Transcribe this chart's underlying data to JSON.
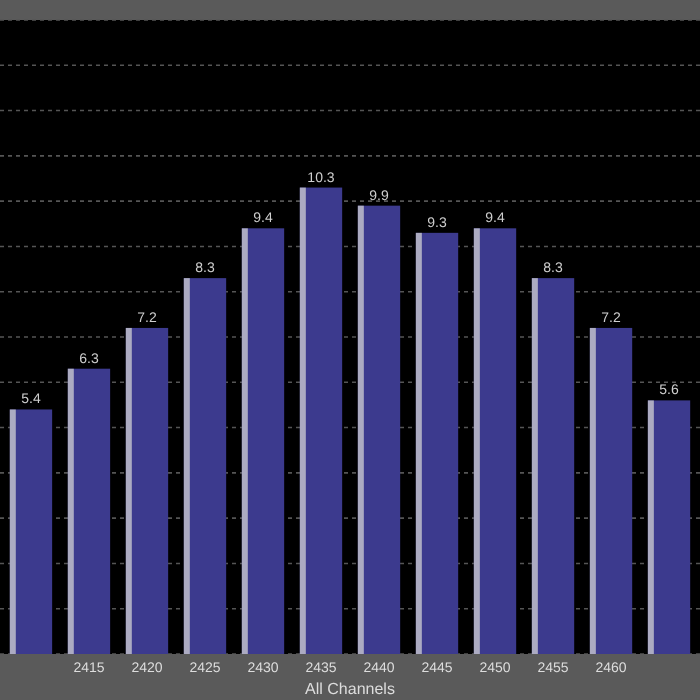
{
  "chart_data": {
    "type": "bar",
    "xlabel": "All Channels",
    "categories": [
      null,
      "2415",
      "2420",
      "2425",
      "2430",
      "2435",
      "2440",
      "2445",
      "2450",
      "2455",
      "2460",
      null
    ],
    "values": [
      5.4,
      6.3,
      7.2,
      8.3,
      9.4,
      10.3,
      9.9,
      9.3,
      9.4,
      8.3,
      7.2,
      5.6
    ],
    "color": "#3c3a8e",
    "data_labels": true,
    "ylim": [
      0,
      14
    ],
    "yticks": [
      {
        "value": 0,
        "label": null
      },
      {
        "value": 1,
        "label": null
      },
      {
        "value": 2,
        "label": null
      },
      {
        "value": 3,
        "label": null
      },
      {
        "value": 4,
        "label": null
      },
      {
        "value": 5,
        "label": null
      },
      {
        "value": 6,
        "label": null
      },
      {
        "value": 7,
        "label": null
      },
      {
        "value": 8,
        "label": null
      },
      {
        "value": 9,
        "label": null
      },
      {
        "value": 10,
        "label": null
      },
      {
        "value": 11,
        "label": null
      },
      {
        "value": 12,
        "label": null
      },
      {
        "value": 13,
        "label": null
      },
      {
        "value": 14,
        "label": null
      }
    ],
    "grid": "y",
    "tick_labels": "x"
  }
}
